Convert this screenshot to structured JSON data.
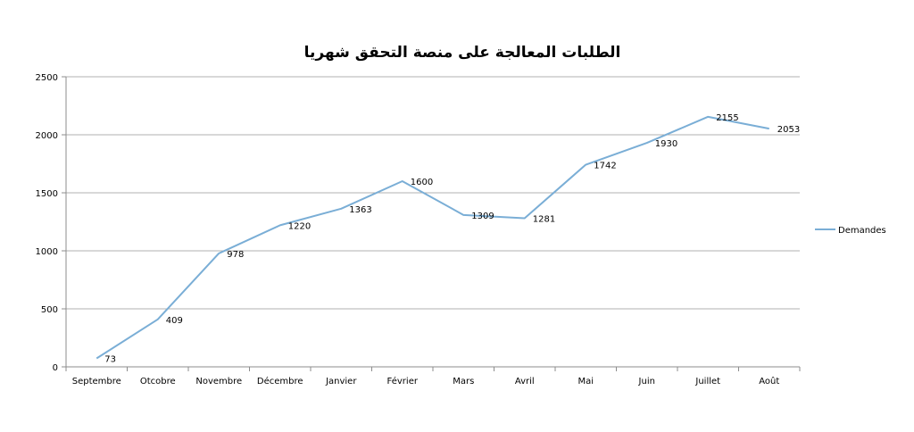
{
  "chart_data": {
    "type": "line",
    "title": "الطلبات المعالجة على منصة التحقق شهريا",
    "xlabel": "",
    "ylabel": "",
    "categories": [
      "Septembre",
      "Otcobre",
      "Novembre",
      "Décembre",
      "Janvier",
      "Février",
      "Mars",
      "Avril",
      "Mai",
      "Juin",
      "Juillet",
      "Août"
    ],
    "series": [
      {
        "name": "Demandes",
        "values": [
          73,
          409,
          978,
          1220,
          1363,
          1600,
          1309,
          1281,
          1742,
          1930,
          2155,
          2053
        ]
      }
    ],
    "ylim": [
      0,
      2500
    ],
    "yticks": [
      0,
      500,
      1000,
      1500,
      2000,
      2500
    ],
    "grid": true,
    "legend_position": "right",
    "line_color": "#7aaed6",
    "grid_color": "#b0b0b0",
    "axis_color": "#8c8c8c"
  }
}
